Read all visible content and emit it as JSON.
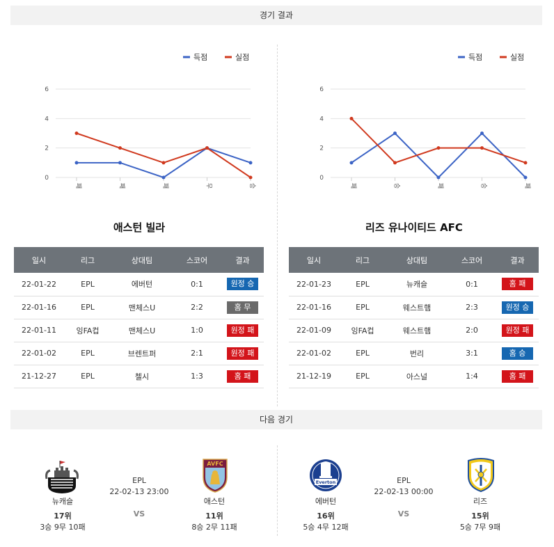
{
  "results_header": "경기 결과",
  "next_header": "다음 경기",
  "legend": {
    "scored": "득점",
    "conceded": "실점"
  },
  "colors": {
    "scored": "#3b63c5",
    "conceded": "#d0391e",
    "win": "#1667b1",
    "draw": "#6a6a6a",
    "loss": "#d3141a"
  },
  "chart_data": [
    {
      "type": "line",
      "categories": [
        "패",
        "패",
        "패",
        "무",
        "승"
      ],
      "series": [
        {
          "name": "득점",
          "values": [
            1,
            1,
            0,
            2,
            1
          ]
        },
        {
          "name": "실점",
          "values": [
            3,
            2,
            1,
            2,
            0
          ]
        }
      ],
      "yticks": [
        "0",
        "2",
        "4",
        "6"
      ],
      "ylim": [
        0,
        6
      ]
    },
    {
      "type": "line",
      "categories": [
        "패",
        "승",
        "패",
        "승",
        "패"
      ],
      "series": [
        {
          "name": "득점",
          "values": [
            1,
            3,
            0,
            3,
            0
          ]
        },
        {
          "name": "실점",
          "values": [
            4,
            1,
            2,
            2,
            1
          ]
        }
      ],
      "yticks": [
        "0",
        "2",
        "4",
        "6"
      ],
      "ylim": [
        0,
        6
      ]
    }
  ],
  "table_headers": [
    "일시",
    "리그",
    "상대팀",
    "스코어",
    "결과"
  ],
  "teams": [
    {
      "name": "애스턴 빌라",
      "rows": [
        {
          "date": "22-01-22",
          "league": "EPL",
          "opponent": "에버턴",
          "score": "0:1",
          "result": "원정 승",
          "kind": "win"
        },
        {
          "date": "22-01-16",
          "league": "EPL",
          "opponent": "맨체스U",
          "score": "2:2",
          "result": "홈 무",
          "kind": "draw"
        },
        {
          "date": "22-01-11",
          "league": "잉FA컵",
          "opponent": "맨체스U",
          "score": "1:0",
          "result": "원정 패",
          "kind": "loss"
        },
        {
          "date": "22-01-02",
          "league": "EPL",
          "opponent": "브렌트퍼",
          "score": "2:1",
          "result": "원정 패",
          "kind": "loss"
        },
        {
          "date": "21-12-27",
          "league": "EPL",
          "opponent": "첼시",
          "score": "1:3",
          "result": "홈 패",
          "kind": "loss"
        }
      ]
    },
    {
      "name": "리즈 유나이티드 AFC",
      "rows": [
        {
          "date": "22-01-23",
          "league": "EPL",
          "opponent": "뉴캐슬",
          "score": "0:1",
          "result": "홈 패",
          "kind": "loss"
        },
        {
          "date": "22-01-16",
          "league": "EPL",
          "opponent": "웨스트햄",
          "score": "2:3",
          "result": "원정 승",
          "kind": "win"
        },
        {
          "date": "22-01-09",
          "league": "잉FA컵",
          "opponent": "웨스트햄",
          "score": "2:0",
          "result": "원정 패",
          "kind": "loss"
        },
        {
          "date": "22-01-02",
          "league": "EPL",
          "opponent": "번리",
          "score": "3:1",
          "result": "홈 승",
          "kind": "win"
        },
        {
          "date": "21-12-19",
          "league": "EPL",
          "opponent": "아스널",
          "score": "1:4",
          "result": "홈 패",
          "kind": "loss"
        }
      ]
    }
  ],
  "next_matches": [
    {
      "league": "EPL",
      "datetime": "22-02-13 23:00",
      "vs": "VS",
      "home": {
        "name": "뉴캐슬",
        "rank": "17위",
        "record": "3승 9무 10패"
      },
      "away": {
        "name": "애스턴",
        "rank": "11위",
        "record": "8승 2무 11패",
        "crest_text": "AVFC"
      }
    },
    {
      "league": "EPL",
      "datetime": "22-02-13 00:00",
      "vs": "VS",
      "home": {
        "name": "에버턴",
        "rank": "16위",
        "record": "5승 4무 12패",
        "crest_text": "Everton"
      },
      "away": {
        "name": "리즈",
        "rank": "15위",
        "record": "5승 7무 9패"
      }
    }
  ]
}
